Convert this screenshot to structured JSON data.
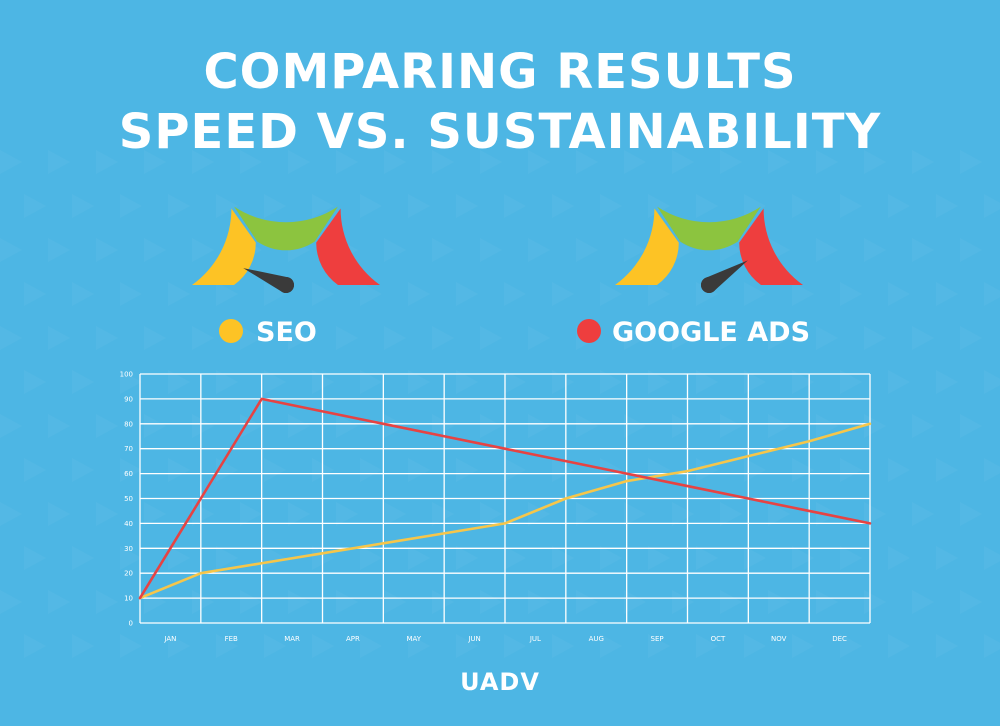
{
  "title_line1": "COMPARING RESULTS",
  "title_line2": "SPEED VS. SUSTAINABILITY",
  "brand": "UADV",
  "gauges": [
    {
      "name": "SEO",
      "needle_fraction": 0.12
    },
    {
      "name": "GOOGLE ADS",
      "needle_fraction": 0.82
    }
  ],
  "colors": {
    "background": "#4db6e4",
    "gauge_yellow": "#fdc325",
    "gauge_green": "#8cc43f",
    "gauge_red": "#ee3e3e",
    "needle": "#3a3a3a",
    "seo_line": "#f6c64a",
    "ads_line": "#e64343",
    "grid": "#ffffff"
  },
  "chart_data": {
    "type": "line",
    "categories": [
      "JAN",
      "FEB",
      "MAR",
      "APR",
      "MAY",
      "JUN",
      "JUL",
      "AUG",
      "SEP",
      "OCT",
      "NOV",
      "DEC"
    ],
    "ylim": [
      0,
      100
    ],
    "yticks": [
      "0",
      "10",
      "20",
      "30",
      "40",
      "50",
      "60",
      "70",
      "80",
      "90",
      "100"
    ],
    "grid": true,
    "legend_position": "top",
    "series": [
      {
        "name": "SEO",
        "color": "#f6c64a",
        "x": [
          0,
          1,
          2,
          3,
          4,
          5,
          6,
          7,
          8,
          9,
          10,
          11,
          12
        ],
        "values": [
          10,
          20,
          24,
          28,
          32,
          36,
          40,
          50,
          57,
          61,
          67,
          73,
          80
        ]
      },
      {
        "name": "GOOGLE ADS",
        "color": "#e64343",
        "x": [
          0,
          1,
          2,
          3,
          4,
          5,
          6,
          7,
          8,
          9,
          10,
          11,
          12
        ],
        "values": [
          10,
          50,
          90,
          85,
          80,
          75,
          70,
          65,
          60,
          55,
          50,
          45,
          40
        ]
      }
    ]
  }
}
